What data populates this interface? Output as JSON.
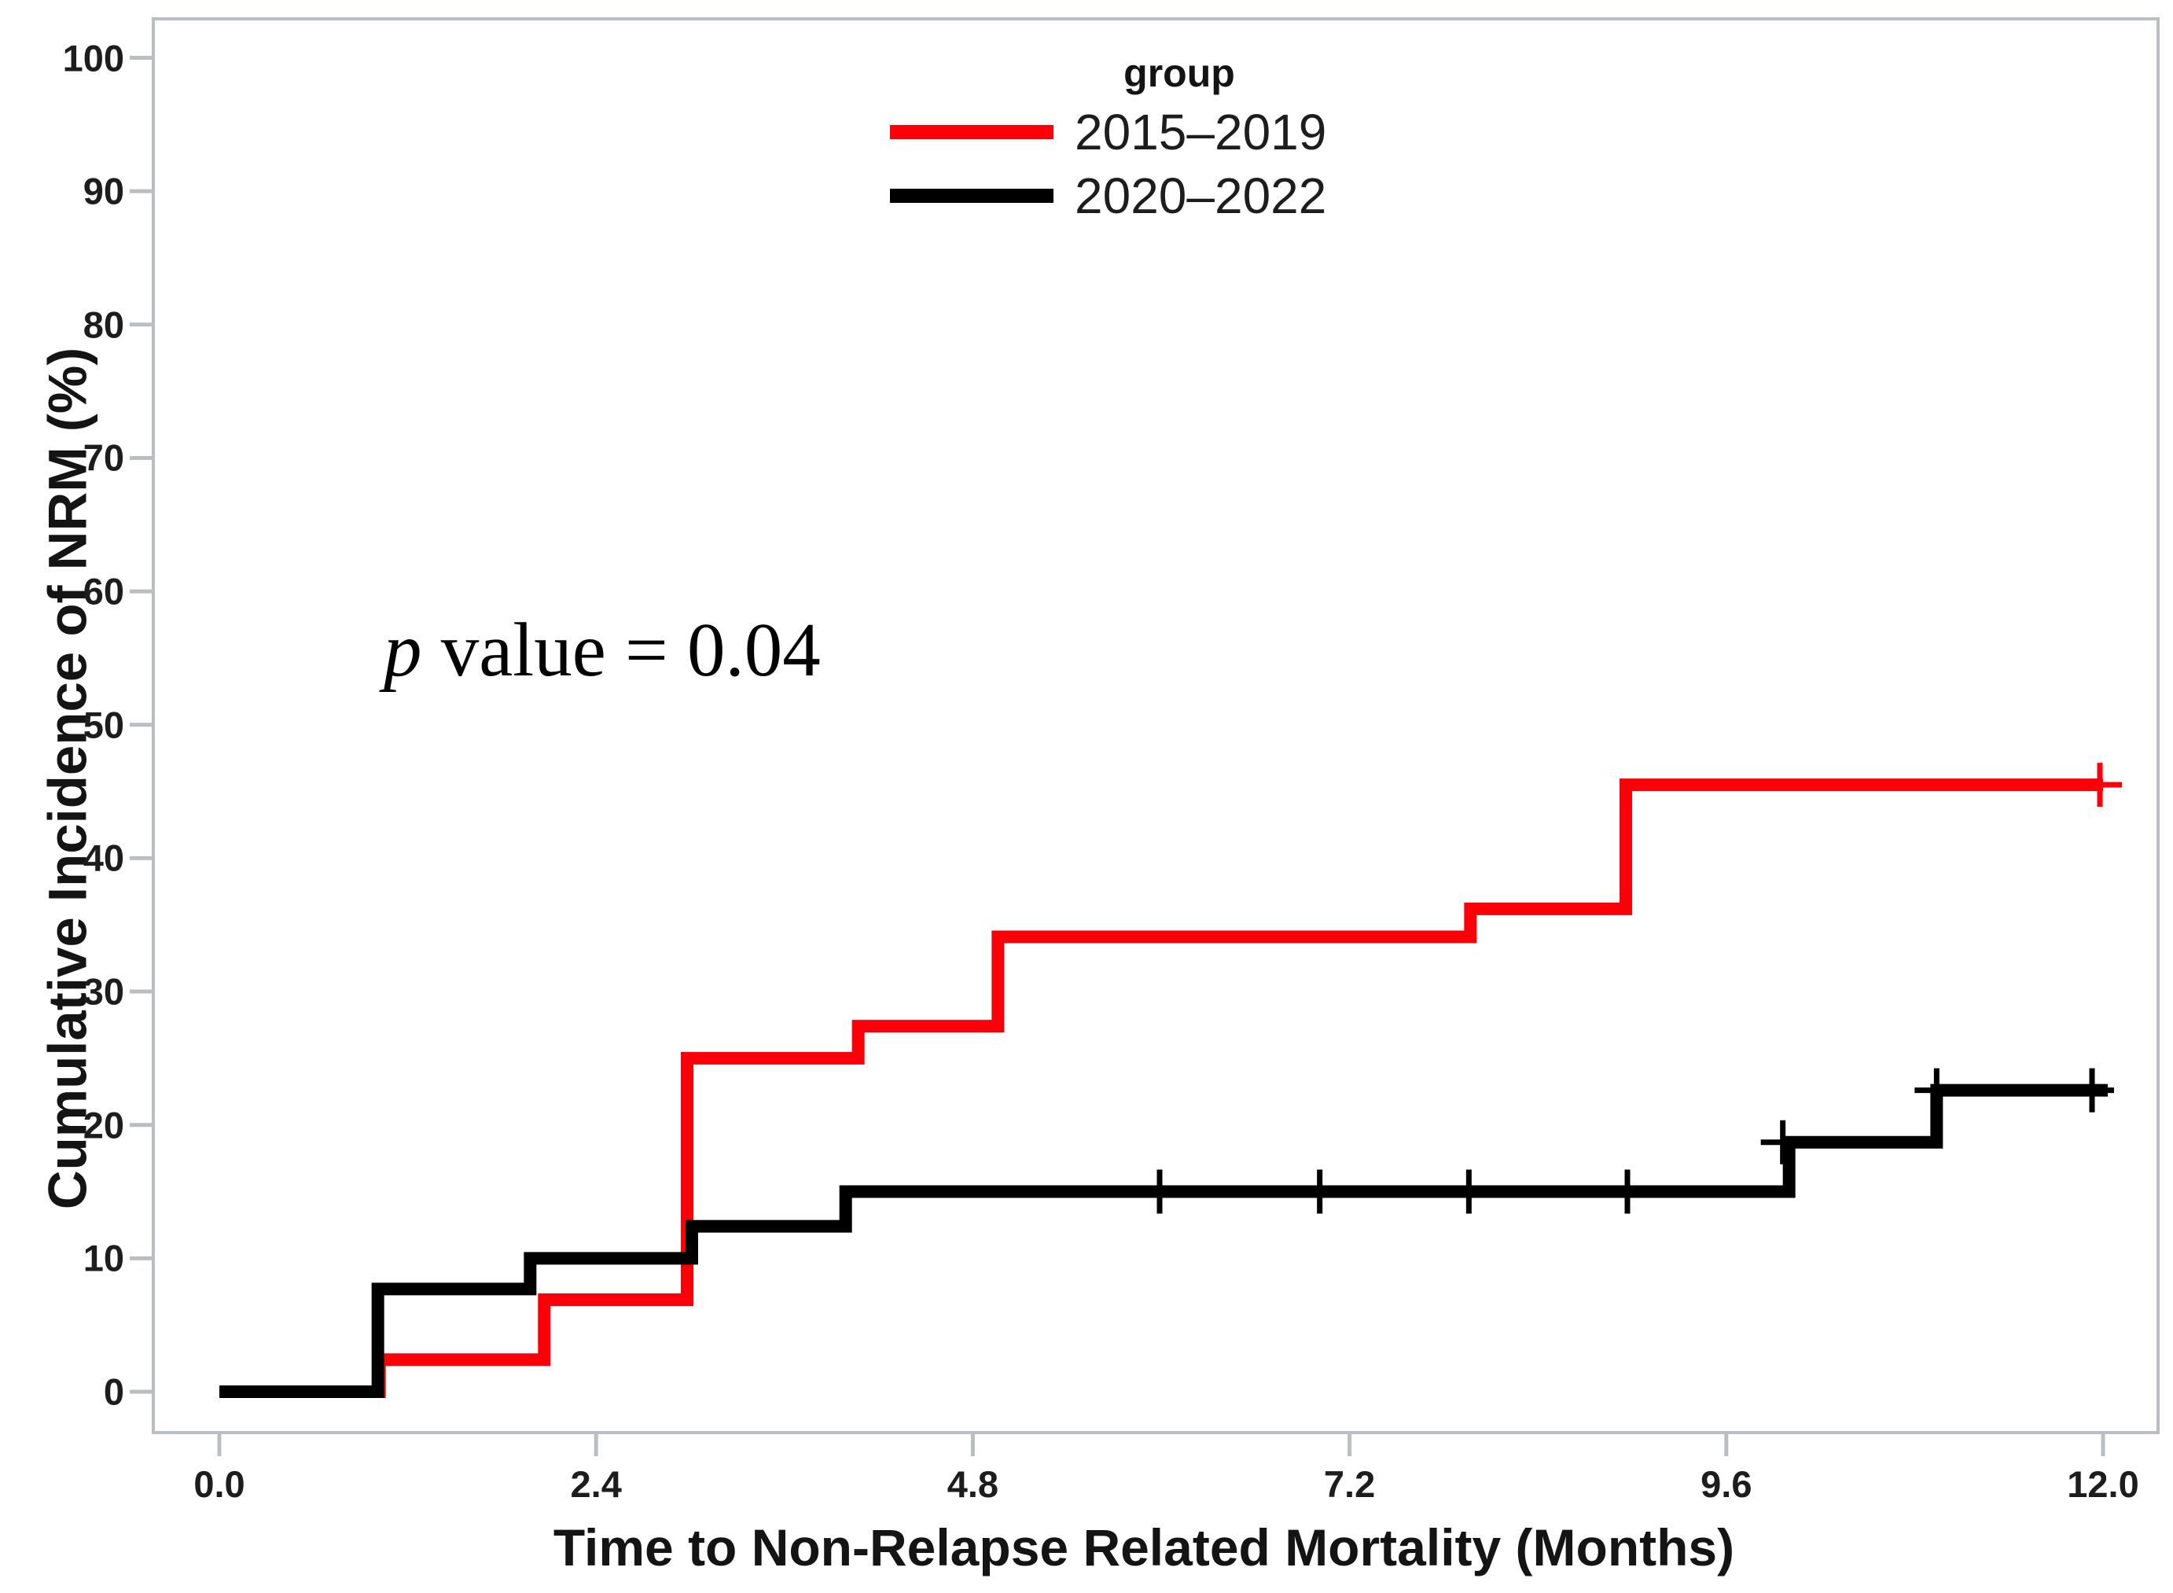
{
  "chart_data": {
    "type": "line",
    "subtype": "step-function-cumulative-incidence",
    "title": "",
    "xlabel": "Time to Non-Relapse Related Mortality (Months)",
    "ylabel": "Cumulative Incidence of NRM (%)",
    "xlim": [
      0,
      12
    ],
    "ylim": [
      0,
      100
    ],
    "grid": false,
    "axis_color": "#b9bec2",
    "x_ticks": [
      {
        "value": 0,
        "label": "0.0"
      },
      {
        "value": 2.4,
        "label": "2.4"
      },
      {
        "value": 4.8,
        "label": "4.8"
      },
      {
        "value": 7.2,
        "label": "7.2"
      },
      {
        "value": 9.6,
        "label": "9.6"
      },
      {
        "value": 12,
        "label": "12.0"
      }
    ],
    "y_ticks": [
      {
        "value": 0,
        "label": "0"
      },
      {
        "value": 10,
        "label": "10"
      },
      {
        "value": 20,
        "label": "20"
      },
      {
        "value": 30,
        "label": "30"
      },
      {
        "value": 40,
        "label": "40"
      },
      {
        "value": 50,
        "label": "50"
      },
      {
        "value": 60,
        "label": "60"
      },
      {
        "value": 70,
        "label": "70"
      },
      {
        "value": 80,
        "label": "80"
      },
      {
        "value": 90,
        "label": "90"
      },
      {
        "value": 100,
        "label": "100"
      }
    ],
    "legend": {
      "title": "group",
      "position": "top-center"
    },
    "annotation": {
      "italic": "p",
      "text": " value = 0.04"
    },
    "series": [
      {
        "name": "2015–2019",
        "color": "#fb0008",
        "steps": [
          [
            0,
            0
          ],
          [
            1.02,
            2.4
          ],
          [
            2.07,
            6.9
          ],
          [
            2.98,
            25.0
          ],
          [
            4.07,
            27.4
          ],
          [
            4.96,
            34.1
          ],
          [
            7.97,
            36.2
          ],
          [
            8.96,
            45.5
          ]
        ],
        "end": 12.0,
        "censors": [
          [
            11.98,
            45.5
          ]
        ]
      },
      {
        "name": "2020–2022",
        "color": "#000000",
        "steps": [
          [
            0,
            0
          ],
          [
            1.01,
            7.7
          ],
          [
            1.98,
            10.0
          ],
          [
            3.01,
            12.4
          ],
          [
            3.99,
            15.0
          ],
          [
            10.0,
            18.7
          ],
          [
            10.94,
            22.6
          ]
        ],
        "end": 12.03,
        "censors": [
          [
            5.99,
            15.0
          ],
          [
            7.01,
            15.0
          ],
          [
            7.96,
            15.0
          ],
          [
            8.97,
            15.0
          ],
          [
            9.96,
            18.7
          ],
          [
            10.94,
            22.6
          ],
          [
            11.93,
            22.6
          ]
        ]
      }
    ]
  }
}
